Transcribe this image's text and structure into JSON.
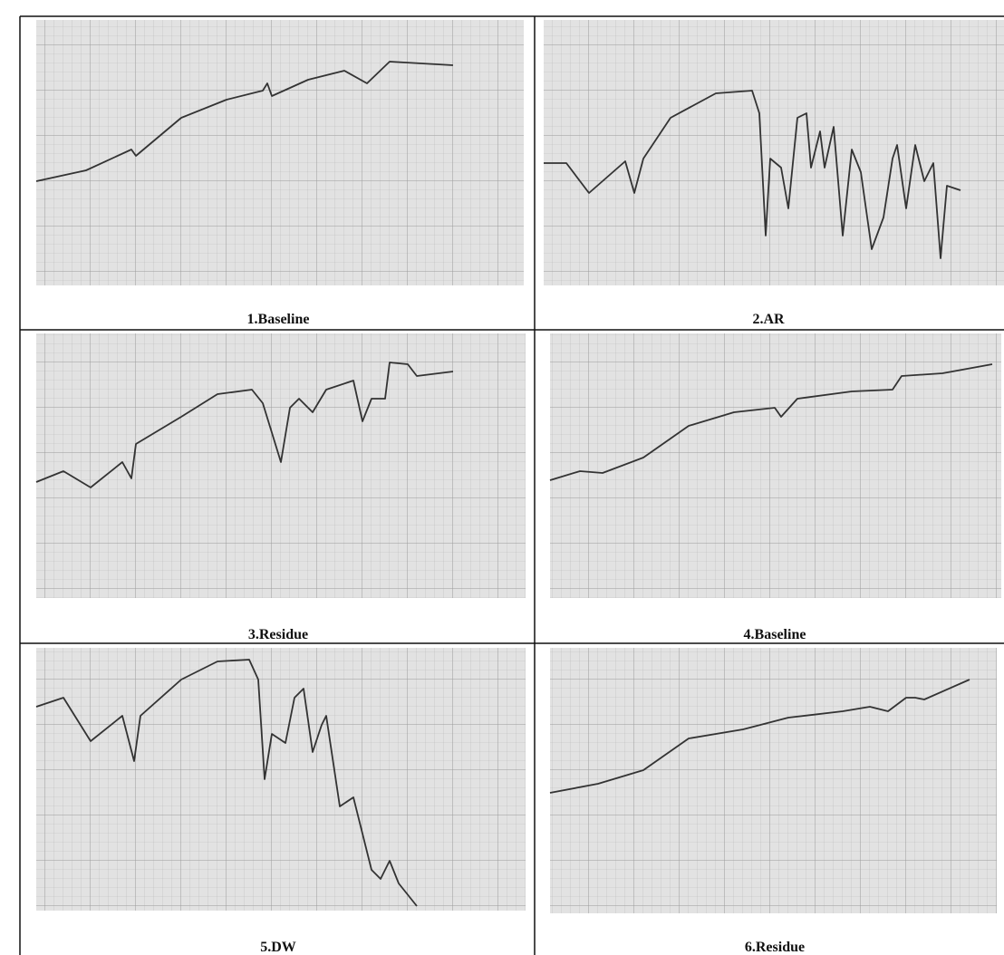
{
  "panels": [
    {
      "caption": "1.Baseline"
    },
    {
      "caption": "2.AR"
    },
    {
      "caption": "3.Residue"
    },
    {
      "caption": "4.Baseline"
    },
    {
      "caption": "5.DW"
    },
    {
      "caption": "6.Residue"
    }
  ]
}
